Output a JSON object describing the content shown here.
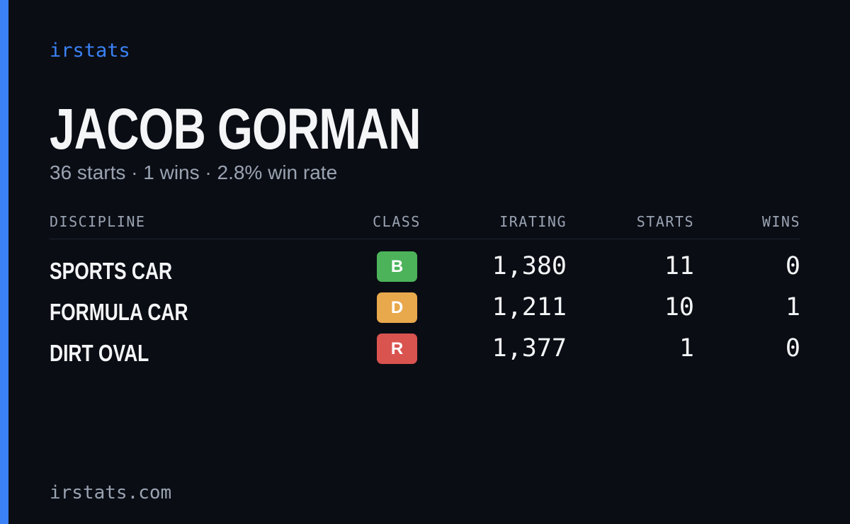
{
  "brand": "irstats",
  "driver": {
    "name": "JACOB GORMAN",
    "summary": "36 starts · 1 wins · 2.8% win rate"
  },
  "table": {
    "headers": [
      "DISCIPLINE",
      "CLASS",
      "IRATING",
      "STARTS",
      "WINS"
    ],
    "rows": [
      {
        "discipline": "SPORTS CAR",
        "class": "B",
        "class_color": "#4cb35a",
        "irating": "1,380",
        "starts": 11,
        "wins": 0
      },
      {
        "discipline": "FORMULA CAR",
        "class": "D",
        "class_color": "#e8a84c",
        "irating": "1,211",
        "starts": 10,
        "wins": 1
      },
      {
        "discipline": "DIRT OVAL",
        "class": "R",
        "class_color": "#d9534f",
        "irating": "1,377",
        "starts": 1,
        "wins": 0
      }
    ]
  },
  "footer": "irstats.com"
}
